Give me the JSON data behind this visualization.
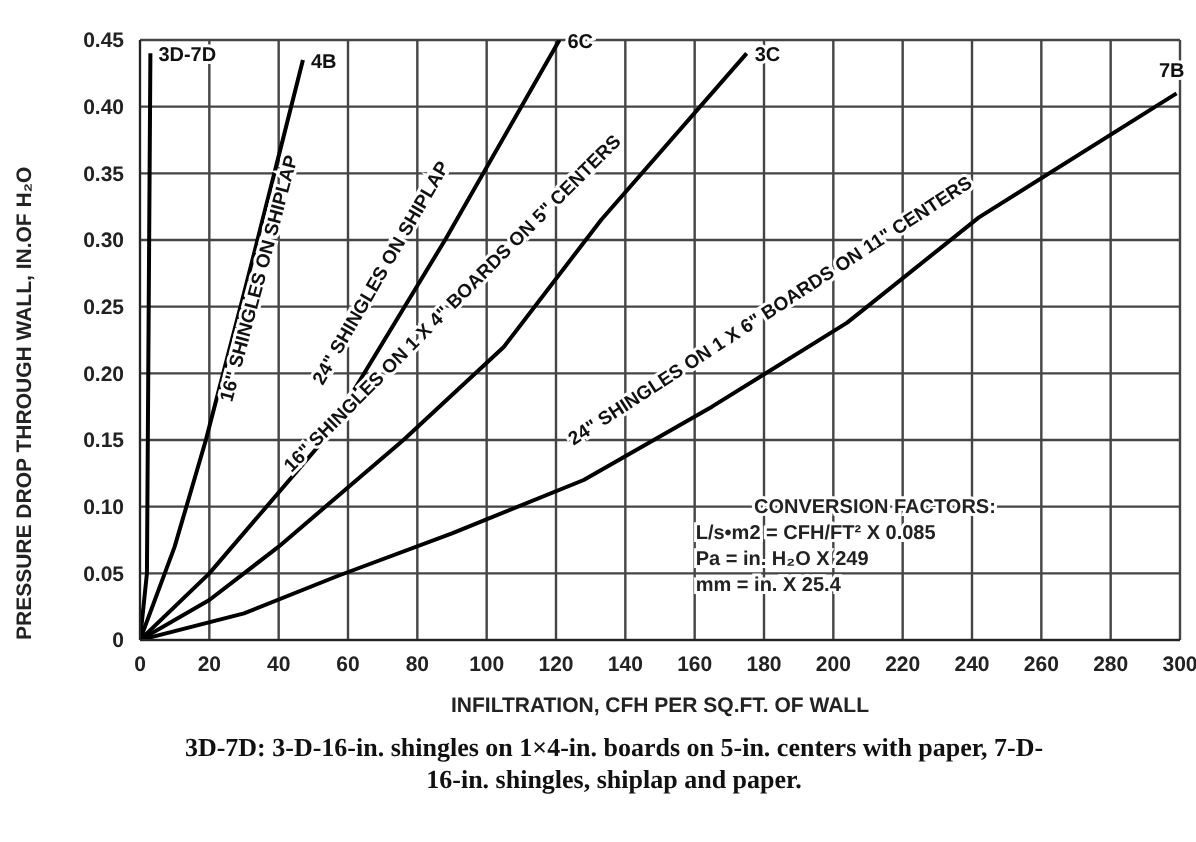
{
  "chart_data": {
    "type": "line",
    "xlabel": "INFILTRATION, CFH PER SQ.FT. OF WALL",
    "ylabel": "PRESSURE DROP THROUGH WALL, IN.OF H₂O",
    "xlim": [
      0,
      300
    ],
    "xticks": [
      0,
      20,
      40,
      60,
      80,
      100,
      120,
      140,
      160,
      180,
      200,
      220,
      240,
      260,
      280,
      300
    ],
    "ylim": [
      0,
      0.45
    ],
    "yticks": [
      {
        "value": 0,
        "label": "0"
      },
      {
        "value": 0.05,
        "label": "0.05"
      },
      {
        "value": 0.1,
        "label": "0.10"
      },
      {
        "value": 0.15,
        "label": "0.15"
      },
      {
        "value": 0.2,
        "label": "0.20"
      },
      {
        "value": 0.25,
        "label": "0.25"
      },
      {
        "value": 0.3,
        "label": "0.30"
      },
      {
        "value": 0.35,
        "label": "0.35"
      },
      {
        "value": 0.4,
        "label": "0.40"
      },
      {
        "value": 0.45,
        "label": "0.45"
      }
    ],
    "grid": true,
    "legend": false,
    "marker": "none",
    "line_style": "solid",
    "series": [
      {
        "name": "3D-7D",
        "color": "#000000",
        "x": [
          0,
          2,
          3
        ],
        "values": [
          0,
          0.05,
          0.44
        ]
      },
      {
        "name": "4B",
        "color": "#000000",
        "x": [
          0,
          10,
          19,
          30,
          47
        ],
        "values": [
          0,
          0.07,
          0.15,
          0.26,
          0.435
        ]
      },
      {
        "name": "6C",
        "color": "#000000",
        "x": [
          0,
          20,
          53,
          88,
          121
        ],
        "values": [
          0,
          0.05,
          0.15,
          0.3,
          0.45
        ]
      },
      {
        "name": "3C",
        "color": "#000000",
        "x": [
          0,
          20,
          40,
          76,
          105,
          133,
          175
        ],
        "values": [
          0,
          0.03,
          0.07,
          0.15,
          0.22,
          0.315,
          0.44
        ]
      },
      {
        "name": "7B",
        "color": "#000000",
        "x": [
          0,
          30,
          57,
          90,
          128,
          165,
          204,
          242,
          299
        ],
        "values": [
          0,
          0.02,
          0.048,
          0.08,
          0.12,
          0.175,
          0.238,
          0.317,
          0.41
        ]
      }
    ],
    "annotations": [
      "16\" SHINGLES ON SHIPLAP",
      "24\" SHINGLES ON SHIPLAP",
      "16\" SHINGLES ON 1 X 4\" BOARDS ON 5\" CENTERS",
      "24\" SHINGLES ON 1 X 6\" BOARDS ON 11\" CENTERS",
      "CONVERSION FACTORS:\nL/s•m2 = CFH/FT² X 0.085\nPa = in. H₂O X 249\nmm = in. X 25.4",
      "3D-7D: 3-D-16-in. shingles on 1×4-in. boards on 5-in. centers with paper, 7-D-16-in. shingles, shiplap and paper."
    ]
  }
}
